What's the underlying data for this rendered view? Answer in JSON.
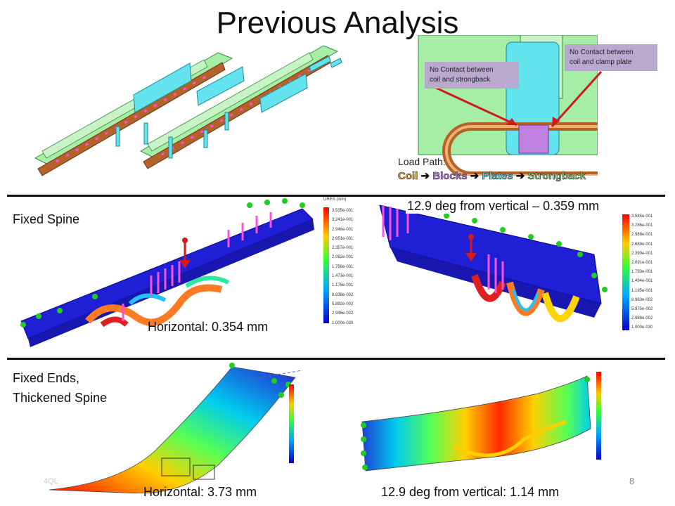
{
  "slide": {
    "title": "Previous Analysis",
    "page_number": "8",
    "footer_mark": "4QL"
  },
  "top_right": {
    "callout_left": [
      "No Contact between",
      "coil and strongback"
    ],
    "callout_right": [
      "No Contact between",
      "coil and clamp plate"
    ],
    "load_path_label": "Load Path:",
    "load_path": {
      "coil": "Coil",
      "blocks": "Blocks",
      "plates": "Plates",
      "strongback": "Strongback",
      "arrow": "➔",
      "colors": {
        "coil": "#e8a33a",
        "blocks": "#c080e0",
        "plates": "#5fd0e0",
        "strongback": "#8fd48f"
      }
    }
  },
  "row1": {
    "label": "Fixed Spine",
    "left_caption": "Horizontal: 0.354 mm",
    "right_caption": "12.9 deg from vertical – 0.359 mm",
    "legend_left": {
      "title": "URES (mm)",
      "values": [
        "3.535e-001",
        "3.241e-001",
        "2.946e-001",
        "2.651e-001",
        "2.357e-001",
        "2.062e-001",
        "1.768e-001",
        "1.473e-001",
        "1.178e-001",
        "8.838e-002",
        "5.892e-002",
        "2.946e-002",
        "1.000e-030"
      ]
    },
    "legend_right": {
      "values": [
        "3.585e-001",
        "3.286e-001",
        "2.988e-001",
        "2.689e-001",
        "2.390e-001",
        "2.091e-001",
        "1.793e-001",
        "1.494e-001",
        "1.195e-001",
        "8.963e-002",
        "5.975e-002",
        "2.988e-002",
        "1.000e-030"
      ]
    }
  },
  "row2": {
    "label_line1": "Fixed Ends,",
    "label_line2": "Thickened Spine",
    "left_caption": "Horizontal: 3.73 mm",
    "right_caption": "12.9 deg from vertical: 1.14 mm"
  },
  "colors": {
    "blue": "#1f1fd6",
    "model_green": "#a6eea6",
    "cyan": "#63e3ee",
    "brown": "#b4612a",
    "magenta": "#ff4fe0",
    "red_arrow": "#d11b1b"
  }
}
